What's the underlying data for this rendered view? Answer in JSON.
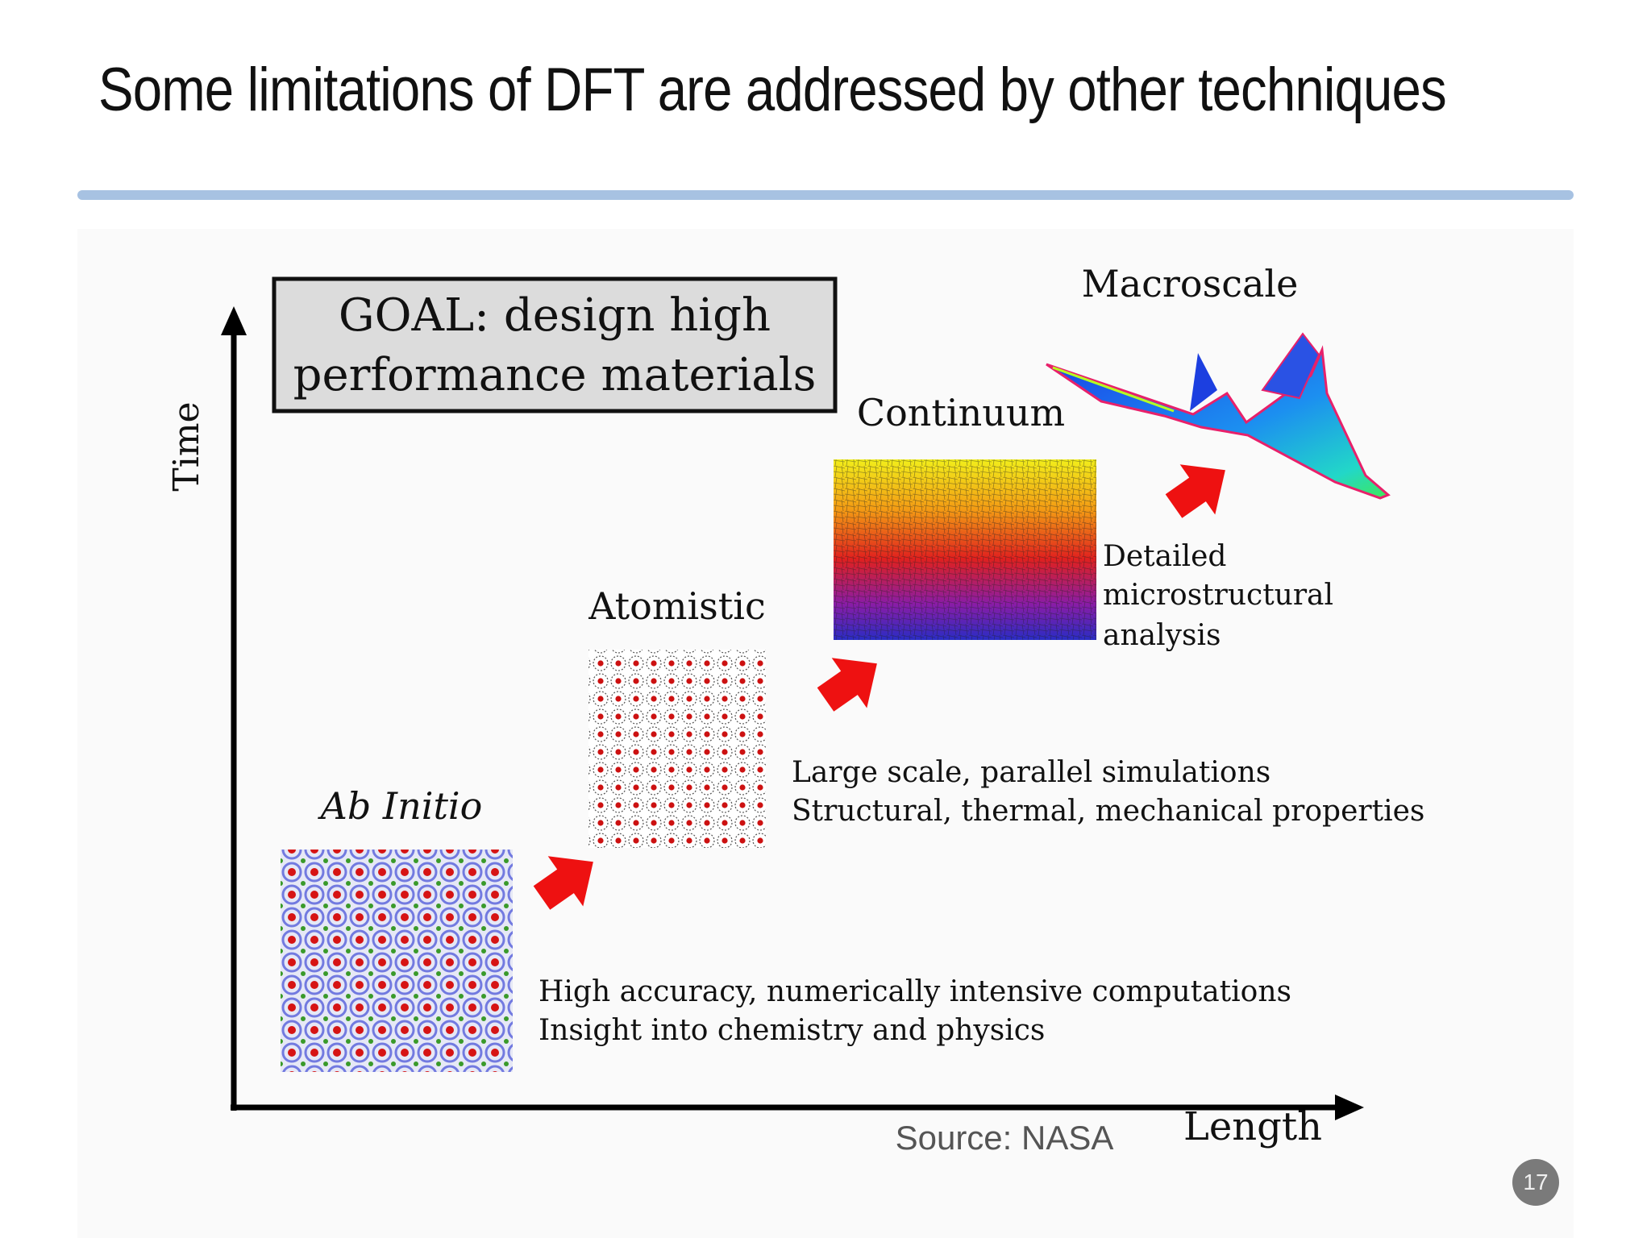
{
  "slide": {
    "title": "Some limitations of DFT are addressed by other techniques",
    "page_number": "17",
    "accent_color": "#a7c2e2"
  },
  "diagram": {
    "goal_line1": "GOAL: design high",
    "goal_line2": "performance materials",
    "axis_y": "Time",
    "axis_x": "Length",
    "source": "Source: NASA",
    "stages": [
      {
        "label": "Ab Initio",
        "desc_line1": "High accuracy, numerically intensive computations",
        "desc_line2": "Insight into chemistry and physics"
      },
      {
        "label": "Atomistic",
        "desc_line1": "Large scale, parallel simulations",
        "desc_line2": "Structural, thermal, mechanical properties"
      },
      {
        "label": "Continuum",
        "desc_line1": "Detailed",
        "desc_line2": "microstructural",
        "desc_line3": "analysis"
      },
      {
        "label": "Macroscale"
      }
    ],
    "arrow_color": "#ee1111"
  }
}
